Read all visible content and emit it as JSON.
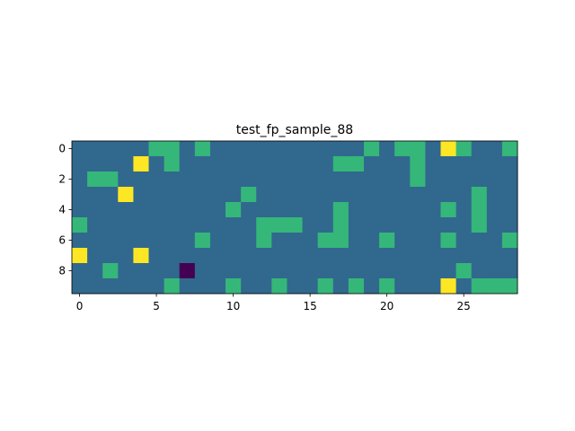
{
  "chart_data": {
    "type": "heatmap",
    "title": "test_fp_sample_88",
    "xlabel": "",
    "ylabel": "",
    "n_cols": 29,
    "n_rows": 10,
    "x_ticks": [
      0,
      5,
      10,
      15,
      20,
      25
    ],
    "y_ticks": [
      0,
      2,
      4,
      6,
      8
    ],
    "x_tick_labels": [
      "0",
      "5",
      "10",
      "15",
      "20",
      "25"
    ],
    "y_tick_labels": [
      "0",
      "2",
      "4",
      "6",
      "8"
    ],
    "grid": false,
    "value_colors": {
      "-1": "#440154",
      "0": "#31688e",
      "1": "#35b779",
      "2": "#fde725"
    },
    "values": [
      [
        0,
        0,
        0,
        0,
        0,
        1,
        1,
        0,
        1,
        0,
        0,
        0,
        0,
        0,
        0,
        0,
        0,
        0,
        0,
        1,
        0,
        1,
        1,
        0,
        2,
        1,
        0,
        0,
        1
      ],
      [
        0,
        0,
        0,
        0,
        2,
        0,
        1,
        0,
        0,
        0,
        0,
        0,
        0,
        0,
        0,
        0,
        0,
        1,
        1,
        0,
        0,
        0,
        1,
        0,
        0,
        0,
        0,
        0,
        0
      ],
      [
        0,
        1,
        1,
        0,
        0,
        0,
        0,
        0,
        0,
        0,
        0,
        0,
        0,
        0,
        0,
        0,
        0,
        0,
        0,
        0,
        0,
        0,
        1,
        0,
        0,
        0,
        0,
        0,
        0
      ],
      [
        0,
        0,
        0,
        2,
        0,
        0,
        0,
        0,
        0,
        0,
        0,
        1,
        0,
        0,
        0,
        0,
        0,
        0,
        0,
        0,
        0,
        0,
        0,
        0,
        0,
        0,
        1,
        0,
        0
      ],
      [
        0,
        0,
        0,
        0,
        0,
        0,
        0,
        0,
        0,
        0,
        1,
        0,
        0,
        0,
        0,
        0,
        0,
        1,
        0,
        0,
        0,
        0,
        0,
        0,
        1,
        0,
        1,
        0,
        0
      ],
      [
        1,
        0,
        0,
        0,
        0,
        0,
        0,
        0,
        0,
        0,
        0,
        0,
        1,
        1,
        1,
        0,
        0,
        1,
        0,
        0,
        0,
        0,
        0,
        0,
        0,
        0,
        1,
        0,
        0
      ],
      [
        0,
        0,
        0,
        0,
        0,
        0,
        0,
        0,
        1,
        0,
        0,
        0,
        1,
        0,
        0,
        0,
        1,
        1,
        0,
        0,
        1,
        0,
        0,
        0,
        1,
        0,
        0,
        0,
        1
      ],
      [
        2,
        0,
        0,
        0,
        2,
        0,
        0,
        0,
        0,
        0,
        0,
        0,
        0,
        0,
        0,
        0,
        0,
        0,
        0,
        0,
        0,
        0,
        0,
        0,
        0,
        0,
        0,
        0,
        0
      ],
      [
        0,
        0,
        1,
        0,
        0,
        0,
        0,
        -1,
        0,
        0,
        0,
        0,
        0,
        0,
        0,
        0,
        0,
        0,
        0,
        0,
        0,
        0,
        0,
        0,
        0,
        1,
        0,
        0,
        0
      ],
      [
        0,
        0,
        0,
        0,
        0,
        0,
        1,
        0,
        0,
        0,
        1,
        0,
        0,
        1,
        0,
        0,
        1,
        0,
        1,
        0,
        1,
        0,
        0,
        0,
        2,
        0,
        1,
        1,
        1
      ]
    ]
  }
}
